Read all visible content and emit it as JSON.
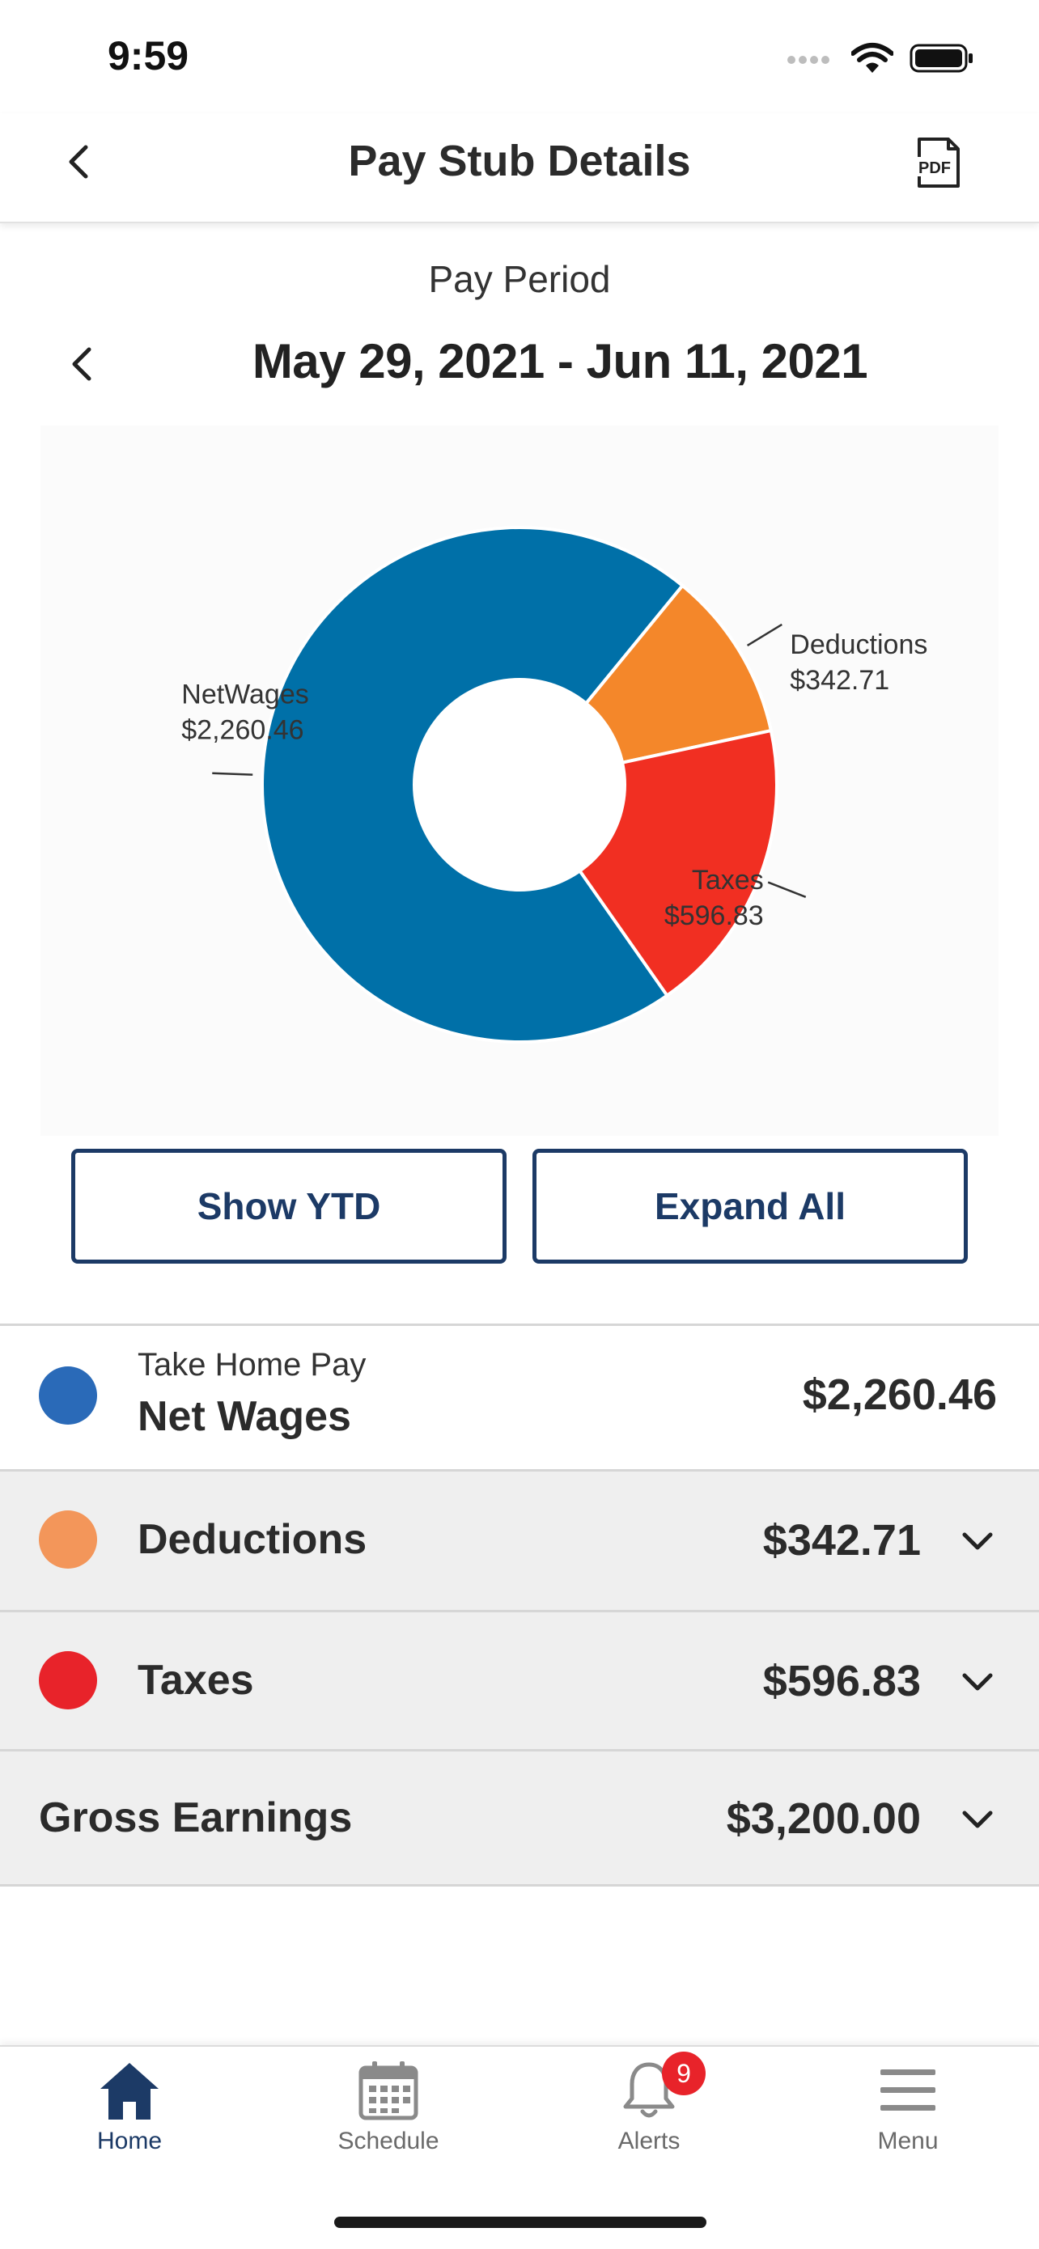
{
  "status_bar": {
    "time": "9:59"
  },
  "header": {
    "title": "Pay Stub Details",
    "pdf_label": "PDF"
  },
  "pay_period": {
    "label": "Pay Period",
    "range": "May 29, 2021 - Jun 11, 2021"
  },
  "colors": {
    "net_wages": "#0070a8",
    "deductions": "#f4872a",
    "taxes": "#f12f22",
    "primary": "#1c3a66"
  },
  "chart_data": {
    "type": "pie",
    "style": "donut",
    "slices": [
      {
        "label": "NetWages",
        "value_label": "$2,260.46",
        "value": 2260.46,
        "color": "#0070a8"
      },
      {
        "label": "Deductions",
        "value_label": "$342.71",
        "value": 342.71,
        "color": "#f4872a"
      },
      {
        "label": "Taxes",
        "value_label": "$596.83",
        "value": 596.83,
        "color": "#f12f22"
      }
    ]
  },
  "buttons": {
    "show_ytd": "Show YTD",
    "expand_all": "Expand All"
  },
  "summary": {
    "net": {
      "sublabel": "Take Home Pay",
      "label": "Net Wages",
      "amount": "$2,260.46",
      "dot_color": "#2a6ab8"
    },
    "deductions": {
      "label": "Deductions",
      "amount": "$342.71",
      "dot_color": "#f3965a"
    },
    "taxes": {
      "label": "Taxes",
      "amount": "$596.83",
      "dot_color": "#e8232a"
    },
    "gross": {
      "label": "Gross Earnings",
      "amount": "$3,200.00"
    }
  },
  "tabs": [
    {
      "label": "Home",
      "icon": "home-icon",
      "active": true
    },
    {
      "label": "Schedule",
      "icon": "calendar-icon",
      "active": false
    },
    {
      "label": "Alerts",
      "icon": "bell-icon",
      "active": false,
      "badge": "9"
    },
    {
      "label": "Menu",
      "icon": "menu-icon",
      "active": false
    }
  ]
}
